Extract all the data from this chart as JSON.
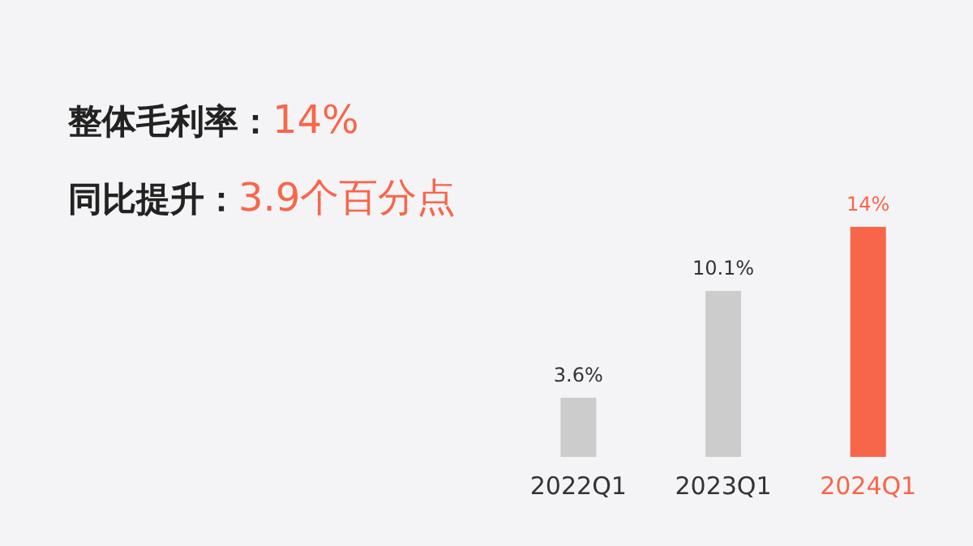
{
  "chart_data": {
    "type": "bar",
    "title": "整体毛利率：14%",
    "subtitle": "同比提升：3.9个百分点",
    "categories": [
      "2022Q1",
      "2023Q1",
      "2024Q1"
    ],
    "values": [
      3.6,
      10.1,
      14
    ],
    "colors": [
      "#cccccc",
      "#cccccc",
      "#f8664a"
    ],
    "value_labels": [
      "3.6%",
      "10.1%",
      "14%"
    ]
  }
}
